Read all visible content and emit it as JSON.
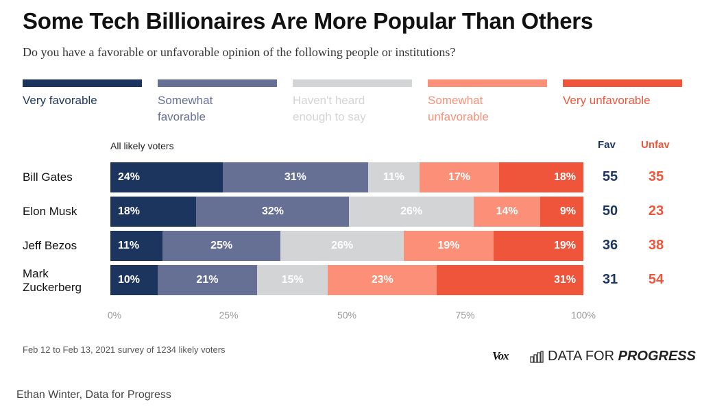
{
  "title": "Some Tech Billionaires Are More Popular Than Others",
  "subtitle": "Do you have a favorable or unfavorable opinion of the following people or institutions?",
  "legend": [
    {
      "label": "Very favorable",
      "color": "#1c355e"
    },
    {
      "label": "Somewhat favorable",
      "color": "#666f94"
    },
    {
      "label": "Haven't heard enough to say",
      "color": "#d2d4d5"
    },
    {
      "label": "Somewhat unfavorable",
      "color": "#fb8f77"
    },
    {
      "label": "Very unfavorable",
      "color": "#ef553b"
    }
  ],
  "chart_data": {
    "type": "bar",
    "orientation": "horizontal-stacked",
    "group_label": "All likely voters",
    "categories": [
      "Bill Gates",
      "Elon Musk",
      "Jeff Bezos",
      "Mark Zuckerberg"
    ],
    "series": [
      {
        "name": "Very favorable",
        "values": [
          24,
          18,
          11,
          10
        ]
      },
      {
        "name": "Somewhat favorable",
        "values": [
          31,
          32,
          25,
          21
        ]
      },
      {
        "name": "Haven't heard enough to say",
        "values": [
          11,
          26,
          26,
          15
        ]
      },
      {
        "name": "Somewhat unfavorable",
        "values": [
          17,
          14,
          19,
          23
        ]
      },
      {
        "name": "Very unfavorable",
        "values": [
          18,
          9,
          19,
          31
        ]
      }
    ],
    "summary_headers": {
      "fav": "Fav",
      "unfav": "Unfav"
    },
    "fav": [
      55,
      50,
      36,
      31
    ],
    "unfav": [
      35,
      23,
      38,
      54
    ],
    "xticks": [
      "0%",
      "25%",
      "50%",
      "75%",
      "100%"
    ],
    "xlim": [
      0,
      100
    ]
  },
  "colors": {
    "fav": "#1c355e",
    "unfav": "#ef553b"
  },
  "note": "Feb 12 to Feb 13, 2021 survey of 1234 likely voters",
  "credit": "Ethan Winter, Data for Progress",
  "logos": {
    "vox": "Vox",
    "dfp_light": "DATA FOR",
    "dfp_bold": "PROGRESS"
  }
}
